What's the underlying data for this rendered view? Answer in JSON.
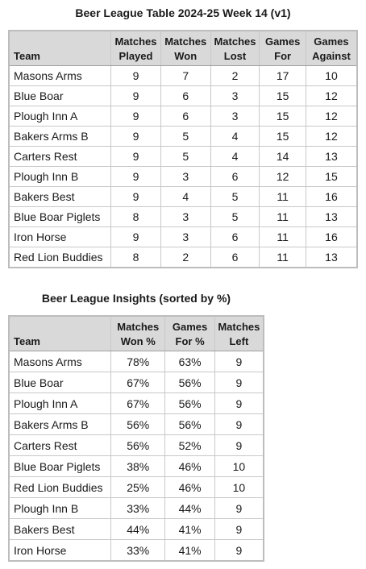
{
  "league_table": {
    "title": "Beer League Table 2024-25 Week 14 (v1)",
    "headers": [
      [
        "Team"
      ],
      [
        "Matches",
        "Played"
      ],
      [
        "Matches",
        "Won"
      ],
      [
        "Matches",
        "Lost"
      ],
      [
        "Games",
        "For"
      ],
      [
        "Games",
        "Against"
      ]
    ],
    "rows": [
      [
        "Masons Arms",
        "9",
        "7",
        "2",
        "17",
        "10"
      ],
      [
        "Blue Boar",
        "9",
        "6",
        "3",
        "15",
        "12"
      ],
      [
        "Plough Inn A",
        "9",
        "6",
        "3",
        "15",
        "12"
      ],
      [
        "Bakers Arms B",
        "9",
        "5",
        "4",
        "15",
        "12"
      ],
      [
        "Carters Rest",
        "9",
        "5",
        "4",
        "14",
        "13"
      ],
      [
        "Plough Inn B",
        "9",
        "3",
        "6",
        "12",
        "15"
      ],
      [
        "Bakers Best",
        "9",
        "4",
        "5",
        "11",
        "16"
      ],
      [
        "Blue Boar Piglets",
        "8",
        "3",
        "5",
        "11",
        "13"
      ],
      [
        "Iron Horse",
        "9",
        "3",
        "6",
        "11",
        "16"
      ],
      [
        "Red Lion Buddies",
        "8",
        "2",
        "6",
        "11",
        "13"
      ]
    ]
  },
  "insights_table": {
    "title": "Beer League Insights (sorted by %)",
    "headers": [
      [
        "Team"
      ],
      [
        "Matches",
        "Won %"
      ],
      [
        "Games",
        "For %"
      ],
      [
        "Matches",
        "Left"
      ]
    ],
    "rows": [
      [
        "Masons Arms",
        "78%",
        "63%",
        "9"
      ],
      [
        "Blue Boar",
        "67%",
        "56%",
        "9"
      ],
      [
        "Plough Inn A",
        "67%",
        "56%",
        "9"
      ],
      [
        "Bakers Arms B",
        "56%",
        "56%",
        "9"
      ],
      [
        "Carters Rest",
        "56%",
        "52%",
        "9"
      ],
      [
        "Blue Boar Piglets",
        "38%",
        "46%",
        "10"
      ],
      [
        "Red Lion Buddies",
        "25%",
        "46%",
        "10"
      ],
      [
        "Plough Inn B",
        "33%",
        "44%",
        "9"
      ],
      [
        "Bakers Best",
        "44%",
        "41%",
        "9"
      ],
      [
        "Iron Horse",
        "33%",
        "41%",
        "9"
      ]
    ]
  }
}
